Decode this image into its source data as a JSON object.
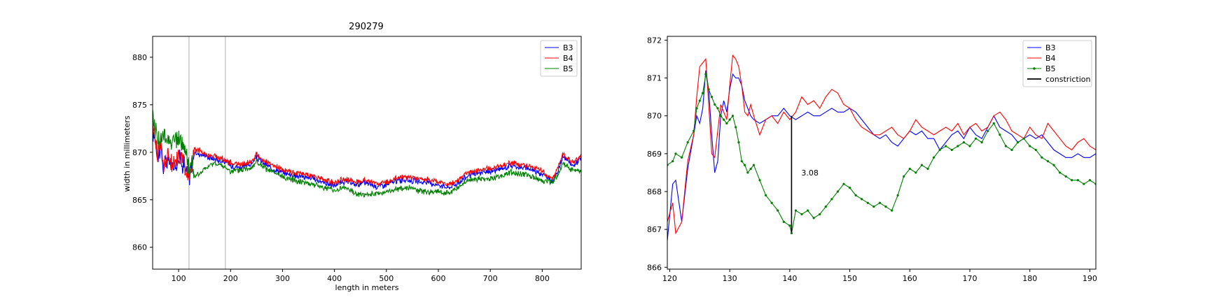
{
  "figure": {
    "charts": [
      {
        "title": "290279",
        "xlabel": "length in meters",
        "ylabel": "width in millimeters"
      },
      {
        "title": "",
        "xlabel": "",
        "ylabel": "",
        "annotation": "3.08"
      }
    ]
  },
  "chart_data": [
    {
      "type": "line",
      "title": "290279",
      "xlabel": "length in meters",
      "ylabel": "width in millimeters",
      "xlim": [
        50,
        875
      ],
      "ylim": [
        857.7,
        882.2
      ],
      "xticks": [
        100,
        200,
        300,
        400,
        500,
        600,
        700,
        800
      ],
      "yticks": [
        860,
        865,
        870,
        875,
        880
      ],
      "legend_position": "upper right",
      "grid": false,
      "vertical_lines": [
        120,
        190
      ],
      "series": [
        {
          "name": "B3",
          "color": "#0000ff",
          "x": [
            50,
            55,
            60,
            65,
            70,
            80,
            90,
            100,
            110,
            115,
            120,
            125,
            130,
            140,
            150,
            160,
            170,
            180,
            190,
            200,
            210,
            220,
            230,
            240,
            250,
            260,
            270,
            280,
            300,
            320,
            340,
            360,
            380,
            400,
            420,
            440,
            460,
            480,
            500,
            520,
            540,
            560,
            580,
            600,
            620,
            640,
            650,
            660,
            680,
            700,
            720,
            740,
            760,
            780,
            800,
            820,
            830,
            840,
            850,
            860,
            875
          ],
          "y": [
            872,
            871.5,
            869.2,
            870.8,
            868.4,
            869.2,
            868.3,
            869.5,
            868.8,
            867.8,
            866.8,
            868.5,
            869.9,
            869.8,
            869.7,
            869.4,
            869.3,
            869.1,
            869,
            868.6,
            868.5,
            868.4,
            868.6,
            868.8,
            869.4,
            869,
            868.6,
            868.3,
            867.9,
            867.6,
            867.4,
            867.2,
            866.8,
            866.5,
            866.9,
            866.6,
            866.8,
            866.4,
            866.6,
            867,
            867.1,
            866.9,
            866.8,
            866.6,
            866.3,
            866.8,
            867.3,
            867.6,
            867.8,
            868,
            868.2,
            868.6,
            868.4,
            868.2,
            867.7,
            867,
            868,
            869.6,
            869,
            868.6,
            869.4
          ]
        },
        {
          "name": "B4",
          "color": "#ff0000",
          "x": [
            50,
            55,
            60,
            65,
            70,
            80,
            90,
            100,
            110,
            115,
            120,
            125,
            130,
            140,
            150,
            160,
            170,
            180,
            190,
            200,
            210,
            220,
            230,
            240,
            250,
            260,
            270,
            280,
            300,
            320,
            340,
            360,
            380,
            400,
            420,
            440,
            460,
            480,
            500,
            520,
            540,
            560,
            580,
            600,
            620,
            640,
            650,
            660,
            680,
            700,
            720,
            740,
            760,
            780,
            800,
            820,
            830,
            840,
            850,
            860,
            875
          ],
          "y": [
            872.5,
            871.8,
            869.8,
            871.2,
            868.8,
            869.5,
            868.5,
            870,
            869,
            868.1,
            867.2,
            868.8,
            870.3,
            870.2,
            869.9,
            869.6,
            869.6,
            869.4,
            869.2,
            868.9,
            868.8,
            868.7,
            868.9,
            869,
            869.8,
            869.3,
            868.9,
            868.6,
            868.2,
            867.9,
            867.7,
            867.5,
            867.1,
            866.8,
            867.2,
            866.9,
            867.1,
            866.7,
            866.9,
            867.3,
            867.4,
            867.2,
            867.1,
            866.9,
            866.6,
            867.1,
            867.6,
            867.9,
            868.1,
            868.3,
            868.5,
            868.9,
            868.7,
            868.5,
            868,
            867.3,
            868.3,
            869.9,
            869.3,
            868.9,
            869.7
          ]
        },
        {
          "name": "B5",
          "color": "#008000",
          "x": [
            50,
            55,
            60,
            65,
            70,
            80,
            90,
            100,
            110,
            115,
            120,
            125,
            130,
            140,
            150,
            160,
            170,
            180,
            190,
            200,
            210,
            220,
            230,
            240,
            250,
            260,
            270,
            280,
            300,
            320,
            340,
            360,
            380,
            400,
            420,
            440,
            460,
            480,
            500,
            520,
            540,
            560,
            580,
            600,
            620,
            640,
            650,
            660,
            680,
            700,
            720,
            740,
            760,
            780,
            800,
            820,
            830,
            840,
            850,
            860,
            875
          ],
          "y": [
            873.5,
            872.5,
            871.5,
            871.2,
            871.5,
            871.4,
            871.2,
            871.3,
            870.6,
            869.5,
            868.4,
            869,
            867.5,
            867.7,
            868.2,
            868.6,
            868.9,
            868.6,
            868.4,
            868,
            868,
            868.1,
            868.3,
            868.4,
            869,
            868.5,
            868.2,
            867.9,
            867.4,
            867.1,
            866.9,
            866.6,
            866.3,
            866,
            866.3,
            865.7,
            865.5,
            865.6,
            865.8,
            866.1,
            866.3,
            866,
            865.8,
            865.9,
            865.7,
            866.3,
            866.8,
            867.1,
            867.2,
            867.2,
            867.5,
            867.9,
            867.7,
            867.5,
            867,
            866.9,
            867.5,
            868.9,
            868.4,
            868,
            868.2
          ]
        }
      ]
    },
    {
      "type": "line",
      "title": "",
      "xlim": [
        119.6,
        191
      ],
      "ylim": [
        865.95,
        872.1
      ],
      "xticks": [
        120,
        130,
        140,
        150,
        160,
        170,
        180,
        190
      ],
      "yticks": [
        866,
        867,
        868,
        869,
        870,
        871,
        872
      ],
      "legend_position": "upper right",
      "grid": false,
      "series": [
        {
          "name": "B3",
          "color": "#0000ff",
          "x": [
            119.6,
            120.5,
            121,
            122,
            123,
            124,
            124.5,
            125,
            125.5,
            126,
            126.5,
            127,
            127.5,
            128,
            128.5,
            129,
            129.5,
            130,
            130.5,
            131,
            131.5,
            132,
            132.5,
            133,
            133.5,
            134,
            135,
            136,
            137,
            138,
            139,
            140,
            141,
            142,
            143,
            144,
            145,
            146,
            147,
            148,
            149,
            150,
            151,
            152,
            153,
            154,
            155,
            156,
            157,
            158,
            159,
            160,
            161,
            162,
            163,
            164,
            165,
            166,
            167,
            168,
            169,
            170,
            171,
            172,
            173,
            174,
            175,
            176,
            177,
            178,
            179,
            180,
            181,
            182,
            183,
            184,
            185,
            186,
            187,
            188,
            189,
            190,
            191
          ],
          "y": [
            866.7,
            868.2,
            868.3,
            867.2,
            868.6,
            869.5,
            870,
            869.8,
            870.2,
            871.2,
            870.7,
            869.5,
            868.5,
            868.8,
            870,
            870.4,
            870.1,
            870.7,
            871.1,
            871,
            871,
            870.8,
            870.4,
            870.2,
            870,
            869.9,
            869.8,
            869.9,
            870,
            870,
            870.2,
            870,
            869.9,
            870,
            870.1,
            870,
            870,
            870.1,
            870.2,
            870.1,
            870.1,
            870.2,
            870.1,
            869.9,
            869.7,
            869.5,
            869.4,
            869.5,
            869.3,
            869.2,
            869.4,
            869.6,
            869.5,
            869.6,
            869.4,
            869.4,
            869.1,
            869.3,
            869.5,
            869.6,
            869.4,
            869.7,
            869.5,
            869.4,
            869.7,
            870,
            869.7,
            869.6,
            869.5,
            869.3,
            869.4,
            869.5,
            869.4,
            869.5,
            869.3,
            869.1,
            869,
            868.9,
            868.9,
            869,
            868.9,
            868.9,
            869
          ]
        },
        {
          "name": "B4",
          "color": "#ff0000",
          "x": [
            119.6,
            120.5,
            121,
            122,
            123,
            124,
            124.5,
            125,
            125.5,
            126,
            126.5,
            127,
            127.5,
            128,
            128.5,
            129,
            129.5,
            130,
            130.5,
            131,
            131.5,
            132,
            132.5,
            133,
            133.5,
            134,
            135,
            136,
            137,
            138,
            139,
            140,
            141,
            142,
            143,
            144,
            145,
            146,
            147,
            148,
            149,
            150,
            151,
            152,
            153,
            154,
            155,
            156,
            157,
            158,
            159,
            160,
            161,
            162,
            163,
            164,
            165,
            166,
            167,
            168,
            169,
            170,
            171,
            172,
            173,
            174,
            175,
            176,
            177,
            178,
            179,
            180,
            181,
            182,
            183,
            184,
            185,
            186,
            187,
            188,
            189,
            190,
            191
          ],
          "y": [
            867.2,
            867.7,
            866.9,
            867.2,
            868.8,
            869.5,
            870.5,
            871.3,
            871.4,
            871.5,
            870.3,
            869,
            868.9,
            869.6,
            870.3,
            870.1,
            869.9,
            870.8,
            871.6,
            871.5,
            871.3,
            870.8,
            870.1,
            870,
            870.3,
            870,
            869.5,
            869.9,
            870,
            869.8,
            870.1,
            869.9,
            870.1,
            870.5,
            870.3,
            870.4,
            870.2,
            870.5,
            870.7,
            870.6,
            870.3,
            870.2,
            869.9,
            869.7,
            869.6,
            869.5,
            869.5,
            869.6,
            869.7,
            869.5,
            869.4,
            869.6,
            869.9,
            869.7,
            869.6,
            869.5,
            869.6,
            869.7,
            869.6,
            869.8,
            869.5,
            869.7,
            869.8,
            869.6,
            869.7,
            870,
            870.1,
            869.9,
            869.6,
            869.5,
            869.4,
            869.7,
            869.5,
            869.4,
            869.8,
            869.6,
            869.4,
            869.2,
            869.1,
            869.3,
            869.4,
            869.2,
            869.1
          ]
        },
        {
          "name": "B5",
          "color": "#008000",
          "x": [
            119.6,
            120.5,
            121,
            122,
            123,
            124,
            124.5,
            125,
            125.5,
            126,
            126.5,
            127,
            127.5,
            128,
            128.5,
            129,
            129.5,
            130,
            130.5,
            131,
            131.5,
            132,
            132.5,
            133,
            133.5,
            134,
            135,
            136,
            137,
            138,
            139,
            140,
            140.3,
            141,
            142,
            143,
            144,
            145,
            146,
            147,
            148,
            149,
            150,
            151,
            152,
            153,
            154,
            155,
            156,
            157,
            158,
            159,
            160,
            161,
            162,
            163,
            164,
            165,
            166,
            167,
            168,
            169,
            170,
            171,
            172,
            173,
            174,
            175,
            176,
            177,
            178,
            179,
            180,
            181,
            182,
            183,
            184,
            185,
            186,
            187,
            188,
            189,
            190,
            191
          ],
          "y": [
            868.7,
            868.8,
            869,
            868.9,
            869.3,
            869.6,
            870.2,
            870.4,
            870.6,
            871.1,
            870.7,
            870.5,
            870.3,
            870.2,
            870,
            869.9,
            869.8,
            869.9,
            870,
            869.7,
            869.3,
            868.8,
            868.7,
            868.5,
            868.6,
            868.7,
            868.3,
            867.9,
            867.7,
            867.5,
            867.2,
            867.1,
            866.9,
            867.5,
            867.4,
            867.5,
            867.3,
            867.4,
            867.6,
            867.8,
            868,
            868.2,
            868.1,
            867.9,
            867.8,
            867.7,
            867.6,
            867.7,
            867.6,
            867.5,
            867.9,
            868.4,
            868.6,
            868.5,
            868.7,
            868.6,
            868.9,
            869.1,
            869.2,
            869.1,
            869.2,
            869.3,
            869.2,
            869.4,
            869.3,
            869.6,
            869.8,
            869.5,
            869.2,
            869.1,
            869.3,
            869.4,
            869.2,
            869.1,
            868.9,
            868.8,
            868.7,
            868.5,
            868.4,
            868.3,
            868.3,
            868.2,
            868.3,
            868.2
          ]
        },
        {
          "name": "constriction",
          "color": "#000000",
          "x": [
            140.3,
            140.3
          ],
          "y": [
            866.92,
            870.0
          ]
        }
      ],
      "annotations": [
        {
          "text": "3.08",
          "x": 141,
          "y": 868.5
        }
      ]
    }
  ]
}
